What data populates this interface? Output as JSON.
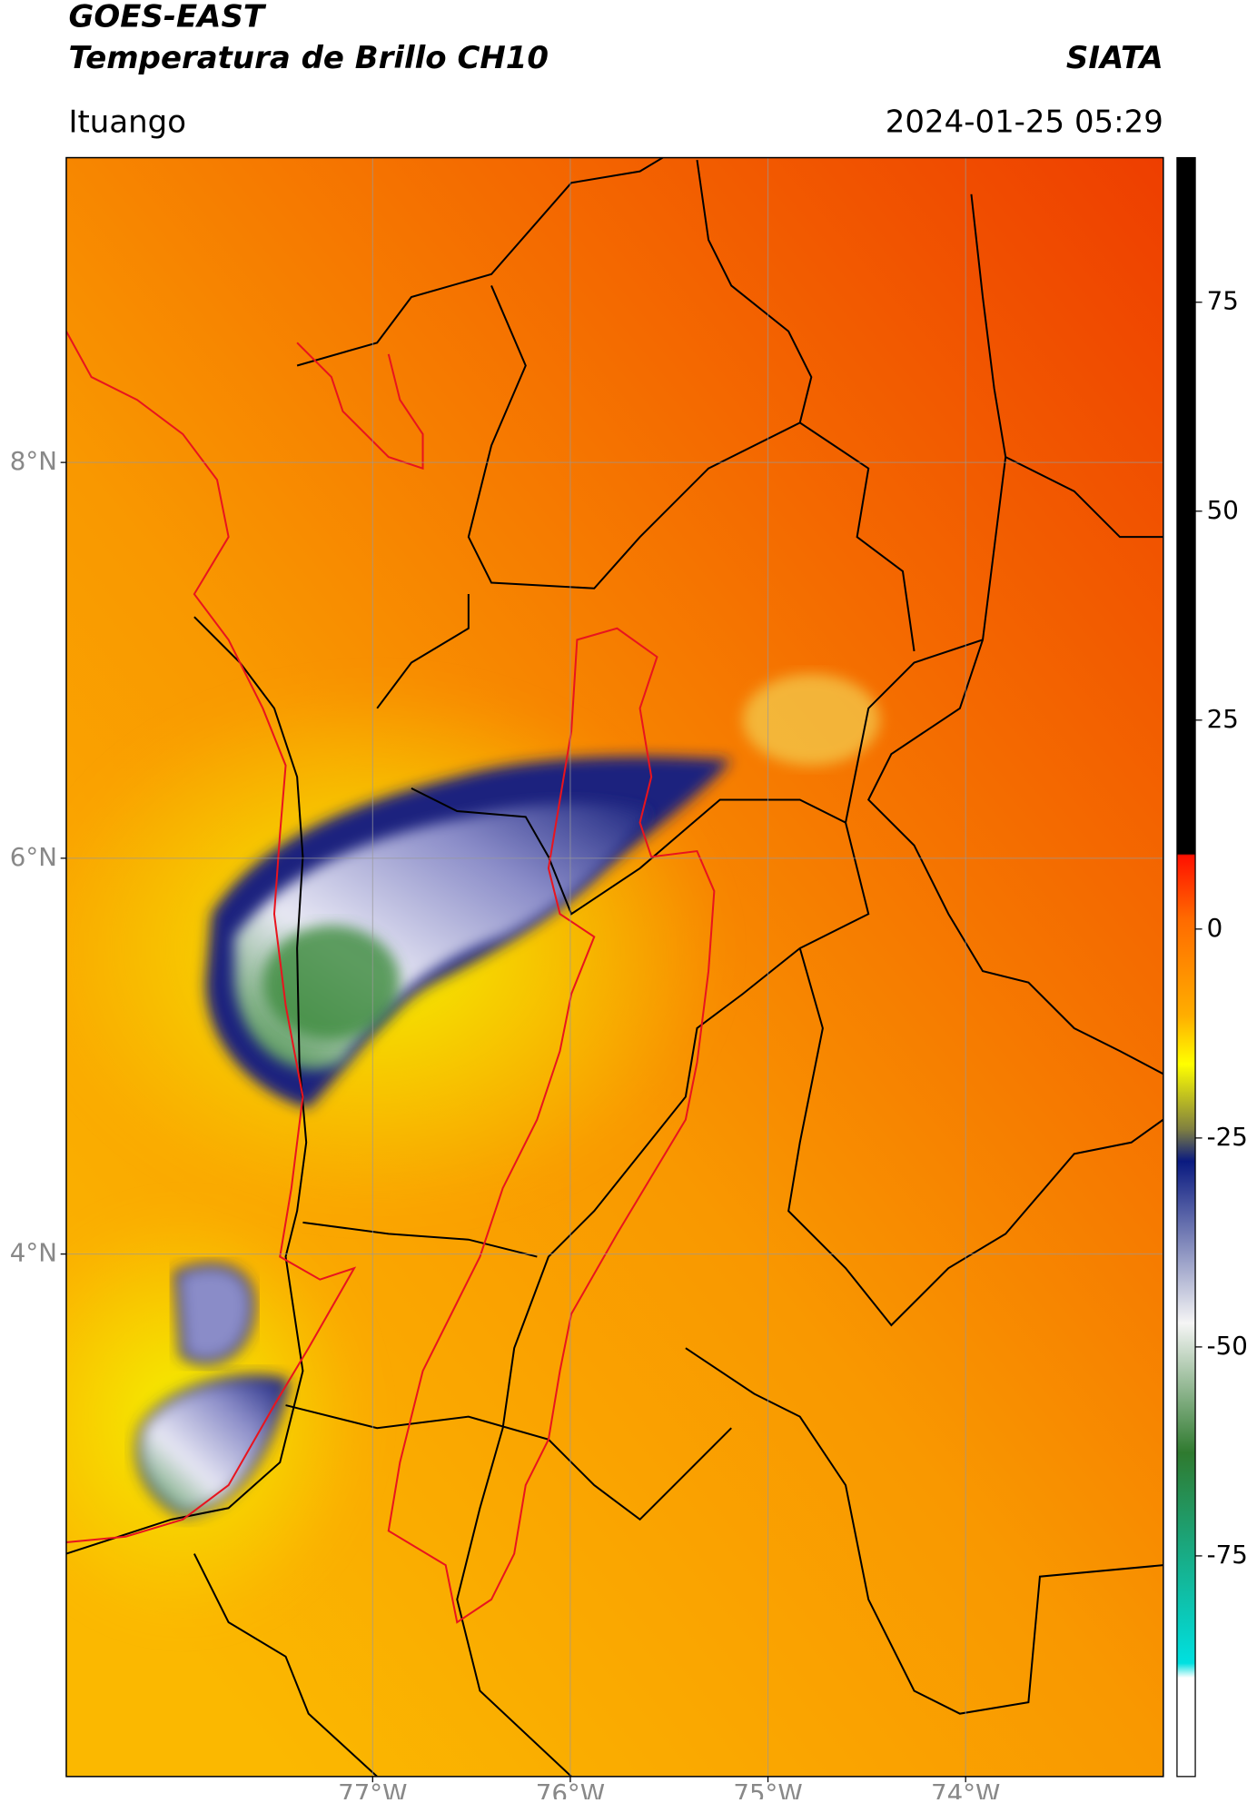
{
  "header": {
    "title": "GOES-EAST",
    "subtitle": "Temperatura de Brillo CH10",
    "source": "SIATA",
    "location": "Ituango",
    "datetime": "2024-01-25 05:29"
  },
  "map": {
    "xlim": [
      -78.55,
      -73.0
    ],
    "ylim": [
      1.36,
      9.54
    ],
    "xticks": [
      {
        "value": -77,
        "label": "77°W"
      },
      {
        "value": -76,
        "label": "76°W"
      },
      {
        "value": -75,
        "label": "75°W"
      },
      {
        "value": -74,
        "label": "74°W"
      }
    ],
    "yticks": [
      {
        "value": 8,
        "label": "8°N"
      },
      {
        "value": 6,
        "label": "6°N"
      },
      {
        "value": 4,
        "label": "4°N"
      }
    ],
    "grid": true
  },
  "colorbar": {
    "ylim": [
      -101.4,
      92.3
    ],
    "yticks": [
      75,
      50,
      25,
      0,
      -25,
      -50,
      -75
    ]
  }
}
